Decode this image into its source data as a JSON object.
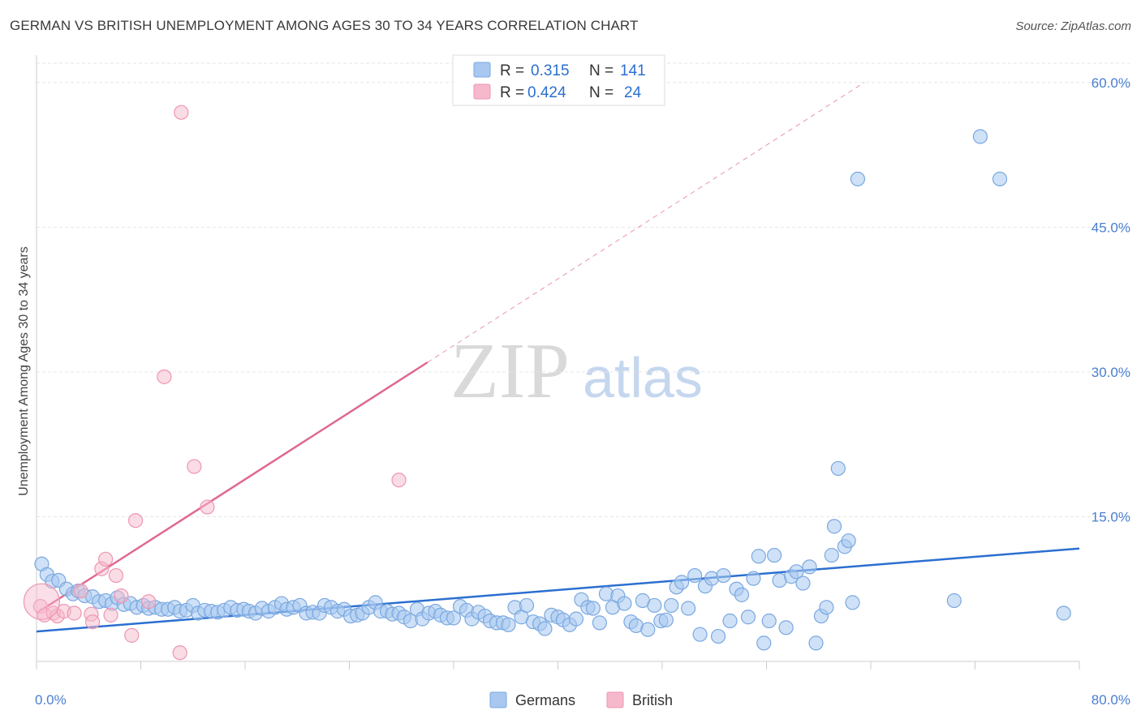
{
  "header": {
    "title": "GERMAN VS BRITISH UNEMPLOYMENT AMONG AGES 30 TO 34 YEARS CORRELATION CHART",
    "source": "Source: ZipAtlas.com"
  },
  "watermark": {
    "zip": "ZIP",
    "atlas": "atlas"
  },
  "colors": {
    "blue_fill": "#a8c8f0",
    "blue_stroke": "#7aa8e0",
    "blue_line": "#2b6fd0",
    "pink_fill": "#f6b9cb",
    "pink_stroke": "#ee95b2",
    "pink_line": "#e06890",
    "label_blue": "#4a7fd0",
    "grid": "#e6e6e6"
  },
  "legend": {
    "rows": [
      {
        "series": "Germans",
        "r_label": "R =",
        "r_value": "0.315",
        "n_label": "N =",
        "n_value": "141"
      },
      {
        "series": "British",
        "r_label": "R =",
        "r_value": "0.424",
        "n_label": "N =",
        "n_value": "24"
      }
    ]
  },
  "chart_data": {
    "type": "scatter",
    "title": "GERMAN VS BRITISH UNEMPLOYMENT AMONG AGES 30 TO 34 YEARS CORRELATION CHART",
    "xlabel": "",
    "ylabel": "Unemployment Among Ages 30 to 34 years",
    "xlim": [
      0,
      80
    ],
    "ylim": [
      0,
      62
    ],
    "x_tick_labels": [
      "0.0%",
      "80.0%"
    ],
    "y_ticks": [
      15,
      30,
      45,
      60
    ],
    "y_tick_labels": [
      "15.0%",
      "30.0%",
      "45.0%",
      "60.0%"
    ],
    "legend_position": "bottom",
    "series": [
      {
        "name": "Germans",
        "r": 0.315,
        "n": 141,
        "trend": {
          "x0": 0,
          "y0": 3.1,
          "x1": 80,
          "y1": 11.7
        },
        "points": [
          [
            0.4,
            10.1
          ],
          [
            0.8,
            9.0
          ],
          [
            1.2,
            8.3
          ],
          [
            1.7,
            8.4
          ],
          [
            2.3,
            7.5
          ],
          [
            2.8,
            7.0
          ],
          [
            3.2,
            7.3
          ],
          [
            3.7,
            6.8
          ],
          [
            4.3,
            6.7
          ],
          [
            4.8,
            6.2
          ],
          [
            5.3,
            6.3
          ],
          [
            5.8,
            6.0
          ],
          [
            6.2,
            6.6
          ],
          [
            6.7,
            5.9
          ],
          [
            7.2,
            6.0
          ],
          [
            7.7,
            5.6
          ],
          [
            8.2,
            5.8
          ],
          [
            8.6,
            5.5
          ],
          [
            9.1,
            5.6
          ],
          [
            9.6,
            5.4
          ],
          [
            10.1,
            5.4
          ],
          [
            10.6,
            5.6
          ],
          [
            11.0,
            5.2
          ],
          [
            11.5,
            5.3
          ],
          [
            12.0,
            5.8
          ],
          [
            12.4,
            5.0
          ],
          [
            12.9,
            5.3
          ],
          [
            13.4,
            5.2
          ],
          [
            13.9,
            5.1
          ],
          [
            14.4,
            5.3
          ],
          [
            14.9,
            5.6
          ],
          [
            15.4,
            5.3
          ],
          [
            15.9,
            5.4
          ],
          [
            16.3,
            5.2
          ],
          [
            16.8,
            5.0
          ],
          [
            17.3,
            5.5
          ],
          [
            17.8,
            5.2
          ],
          [
            18.3,
            5.6
          ],
          [
            18.8,
            6.0
          ],
          [
            19.2,
            5.4
          ],
          [
            19.7,
            5.6
          ],
          [
            20.2,
            5.8
          ],
          [
            20.7,
            5.0
          ],
          [
            21.2,
            5.1
          ],
          [
            21.7,
            5.0
          ],
          [
            22.1,
            5.8
          ],
          [
            22.6,
            5.6
          ],
          [
            23.1,
            5.2
          ],
          [
            23.6,
            5.4
          ],
          [
            24.1,
            4.7
          ],
          [
            24.6,
            4.8
          ],
          [
            25.0,
            5.0
          ],
          [
            25.5,
            5.6
          ],
          [
            26.0,
            6.1
          ],
          [
            26.4,
            5.2
          ],
          [
            26.9,
            5.2
          ],
          [
            27.3,
            4.9
          ],
          [
            27.8,
            5.0
          ],
          [
            28.2,
            4.6
          ],
          [
            28.7,
            4.2
          ],
          [
            29.2,
            5.4
          ],
          [
            29.6,
            4.4
          ],
          [
            30.1,
            5.0
          ],
          [
            30.6,
            5.2
          ],
          [
            31.0,
            4.8
          ],
          [
            31.5,
            4.5
          ],
          [
            32.0,
            4.5
          ],
          [
            32.5,
            5.7
          ],
          [
            33.0,
            5.3
          ],
          [
            33.4,
            4.4
          ],
          [
            33.9,
            5.1
          ],
          [
            34.4,
            4.7
          ],
          [
            34.8,
            4.2
          ],
          [
            35.3,
            4.0
          ],
          [
            35.8,
            4.0
          ],
          [
            36.2,
            3.8
          ],
          [
            36.7,
            5.6
          ],
          [
            37.2,
            4.6
          ],
          [
            37.6,
            5.8
          ],
          [
            38.1,
            4.1
          ],
          [
            38.6,
            3.9
          ],
          [
            39.0,
            3.4
          ],
          [
            39.5,
            4.8
          ],
          [
            40.0,
            4.6
          ],
          [
            40.4,
            4.3
          ],
          [
            40.9,
            3.8
          ],
          [
            41.4,
            4.4
          ],
          [
            41.8,
            6.4
          ],
          [
            42.3,
            5.6
          ],
          [
            42.7,
            5.5
          ],
          [
            43.2,
            4.0
          ],
          [
            43.7,
            7.0
          ],
          [
            44.2,
            5.6
          ],
          [
            44.6,
            6.8
          ],
          [
            45.1,
            6.0
          ],
          [
            45.6,
            4.1
          ],
          [
            46.0,
            3.7
          ],
          [
            46.5,
            6.3
          ],
          [
            46.9,
            3.3
          ],
          [
            47.4,
            5.8
          ],
          [
            47.9,
            4.2
          ],
          [
            48.3,
            4.3
          ],
          [
            48.7,
            5.8
          ],
          [
            49.1,
            7.7
          ],
          [
            49.5,
            8.2
          ],
          [
            50.0,
            5.5
          ],
          [
            50.5,
            8.9
          ],
          [
            50.9,
            2.8
          ],
          [
            51.3,
            7.8
          ],
          [
            51.8,
            8.6
          ],
          [
            52.3,
            2.6
          ],
          [
            52.7,
            8.9
          ],
          [
            53.2,
            4.2
          ],
          [
            53.7,
            7.5
          ],
          [
            54.1,
            6.9
          ],
          [
            54.6,
            4.6
          ],
          [
            55.0,
            8.6
          ],
          [
            55.4,
            10.9
          ],
          [
            55.8,
            1.9
          ],
          [
            56.2,
            4.2
          ],
          [
            56.6,
            11.0
          ],
          [
            57.0,
            8.4
          ],
          [
            57.5,
            3.5
          ],
          [
            57.9,
            8.8
          ],
          [
            58.3,
            9.3
          ],
          [
            58.8,
            8.1
          ],
          [
            59.3,
            9.8
          ],
          [
            59.8,
            1.9
          ],
          [
            60.2,
            4.7
          ],
          [
            60.6,
            5.6
          ],
          [
            61.0,
            11.0
          ],
          [
            61.2,
            14.0
          ],
          [
            61.5,
            20.0
          ],
          [
            62.0,
            11.9
          ],
          [
            62.3,
            12.5
          ],
          [
            62.6,
            6.1
          ],
          [
            63.0,
            50.0
          ],
          [
            70.4,
            6.3
          ],
          [
            72.4,
            54.4
          ],
          [
            73.9,
            50.0
          ],
          [
            78.8,
            5.0
          ]
        ]
      },
      {
        "name": "British",
        "r": 0.424,
        "n": 24,
        "trend": {
          "x0": 0,
          "y0": 5.0,
          "x1": 30,
          "y1": 31.0,
          "extrapolated_x1": 63.5,
          "extrapolated_y1": 60.0
        },
        "points": [
          [
            0.3,
            5.7
          ],
          [
            0.6,
            4.8
          ],
          [
            1.3,
            5.0
          ],
          [
            1.6,
            4.7
          ],
          [
            2.1,
            5.2
          ],
          [
            2.9,
            5.0
          ],
          [
            3.4,
            7.3
          ],
          [
            4.2,
            4.9
          ],
          [
            4.3,
            4.1
          ],
          [
            5.0,
            9.6
          ],
          [
            5.3,
            10.6
          ],
          [
            5.7,
            4.8
          ],
          [
            6.1,
            8.9
          ],
          [
            6.5,
            6.8
          ],
          [
            7.3,
            2.7
          ],
          [
            7.6,
            14.6
          ],
          [
            8.6,
            6.2
          ],
          [
            9.8,
            29.5
          ],
          [
            11.0,
            0.9
          ],
          [
            11.1,
            56.9
          ],
          [
            12.1,
            20.2
          ],
          [
            13.1,
            16.0
          ],
          [
            27.8,
            18.8
          ],
          [
            0.4,
            6.2
          ]
        ]
      }
    ]
  },
  "bottom_legend": {
    "items": [
      "Germans",
      "British"
    ]
  }
}
